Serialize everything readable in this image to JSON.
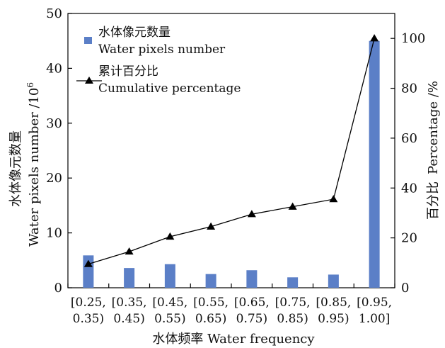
{
  "chart_data": {
    "type": "bar",
    "categories": [
      [
        "[0.25,",
        "0.35)"
      ],
      [
        "[0.35,",
        "0.45)"
      ],
      [
        "[0.45,",
        "0.55)"
      ],
      [
        "[0.55,",
        "0.65)"
      ],
      [
        "[0.65,",
        "0.75)"
      ],
      [
        "[0.75,",
        "0.85)"
      ],
      [
        "[0.85,",
        "0.95)"
      ],
      [
        "[0.95,",
        "1.00]"
      ]
    ],
    "series": [
      {
        "name_cn": "水体像元数量",
        "name": "Water pixels number",
        "type": "bar",
        "axis": "left",
        "color": "#5b7fc7",
        "values": [
          5.9,
          3.6,
          4.3,
          2.5,
          3.2,
          1.9,
          2.4,
          45.0
        ]
      },
      {
        "name_cn": "累计百分比",
        "name": "Cumulative percentage",
        "type": "line",
        "axis": "right",
        "color": "#000000",
        "marker": "triangle",
        "values": [
          9.5,
          14.5,
          20.5,
          24.5,
          29.5,
          32.5,
          35.5,
          100
        ]
      }
    ],
    "yaxis_left": {
      "label_cn": "水体像元数量",
      "label_en": "Water pixels number /10",
      "label_sup": "6",
      "ylim": [
        0,
        50
      ],
      "ticks": [
        "0",
        "10",
        "20",
        "30",
        "40",
        "50"
      ]
    },
    "yaxis_right": {
      "label_cn": "百分比",
      "label_en": "Percentage /%",
      "ylim": [
        0,
        110
      ],
      "ticks": [
        "0",
        "20",
        "40",
        "60",
        "80",
        "100"
      ],
      "tick_values": [
        0,
        20,
        40,
        60,
        80,
        100
      ]
    },
    "xaxis": {
      "label": "水体频率   Water frequency"
    },
    "legend": {
      "placement": "top-left"
    },
    "grid": false
  }
}
